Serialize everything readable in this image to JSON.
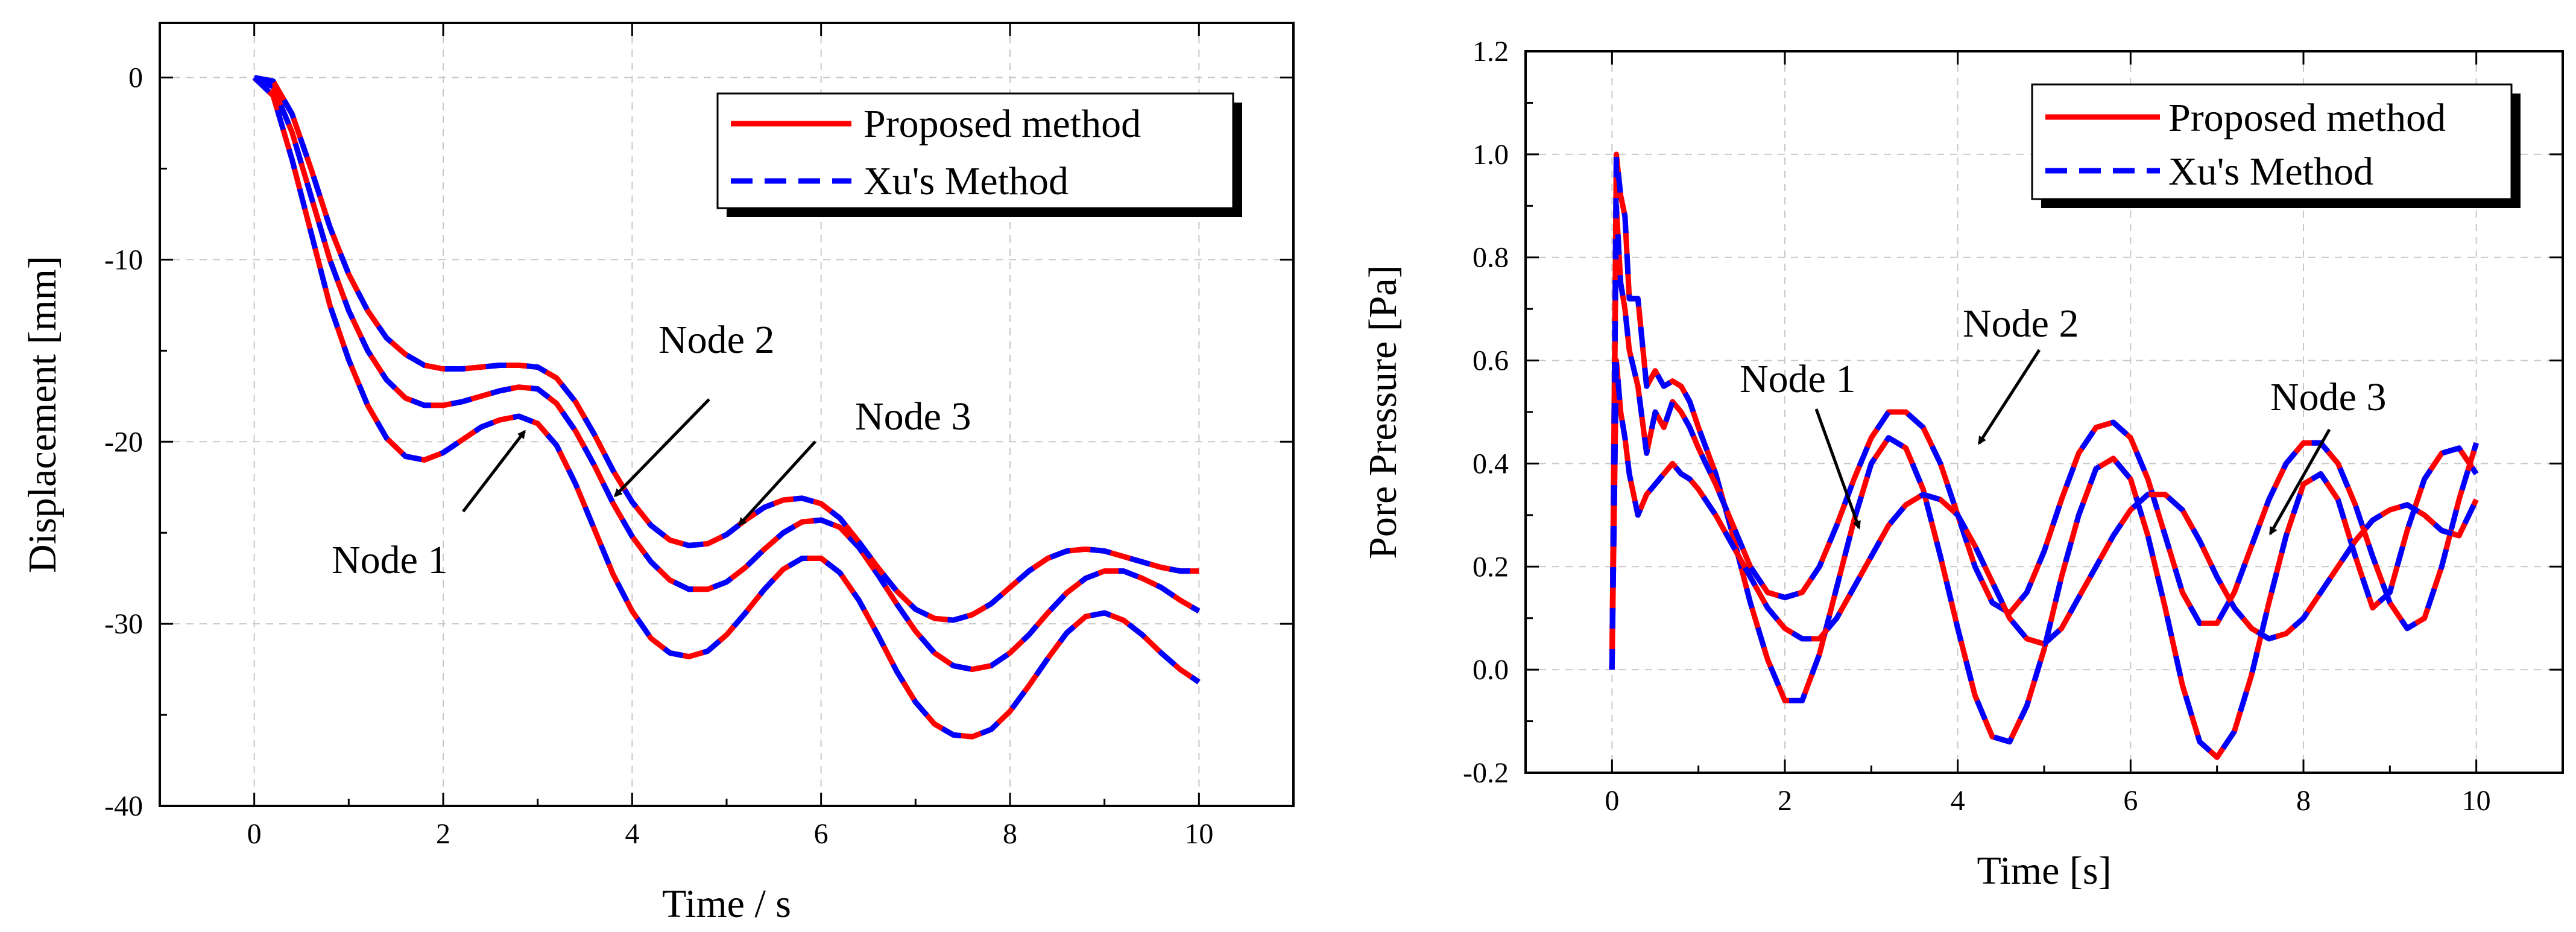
{
  "chart_data": [
    {
      "type": "line",
      "title": "",
      "xlabel": "Time / s",
      "ylabel": "Displacement [mm]",
      "xlim": [
        -1,
        11
      ],
      "ylim": [
        -40,
        3
      ],
      "xticks": [
        0,
        2,
        4,
        6,
        8,
        10
      ],
      "xtick_labels": [
        "0",
        "2",
        "4",
        "6",
        "8",
        "10"
      ],
      "yticks": [
        0,
        -10,
        -20,
        -30,
        -40
      ],
      "ytick_labels": [
        "0",
        "-10",
        "-20",
        "-30",
        "-40"
      ],
      "grid": true,
      "legend_position": "top-right",
      "legend": [
        {
          "label": "Proposed method",
          "color": "#ff0000",
          "style": "solid"
        },
        {
          "label": "Xu's Method",
          "color": "#0000ff",
          "style": "dashed"
        }
      ],
      "colors": {
        "proposed": "#ff0000",
        "xu": "#0000ff"
      },
      "series": [
        {
          "name": "Node 1",
          "x": [
            0,
            0.2,
            0.4,
            0.6,
            0.8,
            1.0,
            1.2,
            1.4,
            1.6,
            1.8,
            2.0,
            2.2,
            2.4,
            2.6,
            2.8,
            3.0,
            3.2,
            3.4,
            3.6,
            3.8,
            4.0,
            4.2,
            4.4,
            4.6,
            4.8,
            5.0,
            5.2,
            5.4,
            5.6,
            5.8,
            6.0,
            6.2,
            6.4,
            6.6,
            6.8,
            7.0,
            7.2,
            7.4,
            7.6,
            7.8,
            8.0,
            8.2,
            8.4,
            8.6,
            8.8,
            9.0,
            9.2,
            9.4,
            9.6,
            9.8,
            10.0
          ],
          "y": [
            0,
            -1,
            -4.5,
            -8.5,
            -12.5,
            -15.5,
            -18,
            -19.8,
            -20.8,
            -21,
            -20.6,
            -19.9,
            -19.2,
            -18.8,
            -18.6,
            -19,
            -20.2,
            -22.3,
            -24.8,
            -27.3,
            -29.3,
            -30.8,
            -31.6,
            -31.8,
            -31.5,
            -30.6,
            -29.4,
            -28.1,
            -27,
            -26.4,
            -26.4,
            -27.2,
            -28.7,
            -30.6,
            -32.6,
            -34.3,
            -35.5,
            -36.1,
            -36.2,
            -35.8,
            -34.8,
            -33.4,
            -31.9,
            -30.5,
            -29.6,
            -29.4,
            -29.8,
            -30.6,
            -31.6,
            -32.5,
            -33.2
          ]
        },
        {
          "name": "Node 2",
          "x": [
            0,
            0.2,
            0.4,
            0.6,
            0.8,
            1.0,
            1.2,
            1.4,
            1.6,
            1.8,
            2.0,
            2.2,
            2.4,
            2.6,
            2.8,
            3.0,
            3.2,
            3.4,
            3.6,
            3.8,
            4.0,
            4.2,
            4.4,
            4.6,
            4.8,
            5.0,
            5.2,
            5.4,
            5.6,
            5.8,
            6.0,
            6.2,
            6.4,
            6.6,
            6.8,
            7.0,
            7.2,
            7.4,
            7.6,
            7.8,
            8.0,
            8.2,
            8.4,
            8.6,
            8.8,
            9.0,
            9.2,
            9.4,
            9.6,
            9.8,
            10.0
          ],
          "y": [
            0,
            -0.5,
            -3,
            -6.5,
            -10,
            -12.8,
            -15,
            -16.6,
            -17.6,
            -18,
            -18,
            -17.8,
            -17.5,
            -17.2,
            -17,
            -17.1,
            -17.9,
            -19.4,
            -21.3,
            -23.4,
            -25.2,
            -26.6,
            -27.6,
            -28.1,
            -28.1,
            -27.7,
            -26.9,
            -25.9,
            -25,
            -24.4,
            -24.3,
            -24.7,
            -25.8,
            -27.3,
            -28.9,
            -30.4,
            -31.6,
            -32.3,
            -32.5,
            -32.3,
            -31.6,
            -30.6,
            -29.4,
            -28.3,
            -27.5,
            -27.1,
            -27.1,
            -27.5,
            -28,
            -28.7,
            -29.3
          ]
        },
        {
          "name": "Node 3",
          "x": [
            0,
            0.2,
            0.4,
            0.6,
            0.8,
            1.0,
            1.2,
            1.4,
            1.6,
            1.8,
            2.0,
            2.2,
            2.4,
            2.6,
            2.8,
            3.0,
            3.2,
            3.4,
            3.6,
            3.8,
            4.0,
            4.2,
            4.4,
            4.6,
            4.8,
            5.0,
            5.2,
            5.4,
            5.6,
            5.8,
            6.0,
            6.2,
            6.4,
            6.6,
            6.8,
            7.0,
            7.2,
            7.4,
            7.6,
            7.8,
            8.0,
            8.2,
            8.4,
            8.6,
            8.8,
            9.0,
            9.2,
            9.4,
            9.6,
            9.8,
            10.0
          ],
          "y": [
            0,
            -0.2,
            -2,
            -5,
            -8.2,
            -10.8,
            -12.8,
            -14.3,
            -15.2,
            -15.8,
            -16,
            -16,
            -15.9,
            -15.8,
            -15.8,
            -15.9,
            -16.5,
            -17.8,
            -19.6,
            -21.6,
            -23.3,
            -24.6,
            -25.4,
            -25.7,
            -25.6,
            -25.1,
            -24.3,
            -23.6,
            -23.2,
            -23.1,
            -23.4,
            -24.2,
            -25.5,
            -26.9,
            -28.2,
            -29.2,
            -29.7,
            -29.8,
            -29.5,
            -28.9,
            -28,
            -27.1,
            -26.4,
            -26,
            -25.9,
            -26,
            -26.3,
            -26.6,
            -26.9,
            -27.1,
            -27.1
          ]
        }
      ],
      "annotations": [
        {
          "text": "Node 1",
          "x": 2.2,
          "y": -26.5,
          "arrow_to": [
            2.9,
            -19.5
          ]
        },
        {
          "text": "Node 2",
          "x": 5.3,
          "y": -15,
          "arrow_to": [
            3.8,
            -23.2
          ]
        },
        {
          "text": "Node 3",
          "x": 7.3,
          "y": -19.5,
          "arrow_to": [
            5.1,
            -25.0
          ]
        }
      ]
    },
    {
      "type": "line",
      "title": "",
      "xlabel": "Time [s]",
      "ylabel": "Pore Pressure [Pa]",
      "xlim": [
        -1,
        11
      ],
      "ylim": [
        -0.2,
        1.2
      ],
      "xticks": [
        0,
        2,
        4,
        6,
        8,
        10
      ],
      "xtick_labels": [
        "0",
        "2",
        "4",
        "6",
        "8",
        "10"
      ],
      "yticks": [
        -0.2,
        0.0,
        0.2,
        0.4,
        0.6,
        0.8,
        1.0,
        1.2
      ],
      "ytick_labels": [
        "-0.2",
        "0.0",
        "0.2",
        "0.4",
        "0.6",
        "0.8",
        "1.0",
        "1.2"
      ],
      "grid": true,
      "legend_position": "top-right",
      "legend": [
        {
          "label": "Proposed method",
          "color": "#ff0000",
          "style": "solid"
        },
        {
          "label": "Xu's Method",
          "color": "#0000ff",
          "style": "dashed"
        }
      ],
      "colors": {
        "proposed": "#ff0000",
        "xu": "#0000ff"
      },
      "series": [
        {
          "name": "Node 1",
          "x": [
            0,
            0.05,
            0.1,
            0.15,
            0.2,
            0.3,
            0.4,
            0.5,
            0.6,
            0.7,
            0.8,
            0.9,
            1.0,
            1.2,
            1.4,
            1.6,
            1.8,
            2.0,
            2.2,
            2.4,
            2.6,
            2.8,
            3.0,
            3.2,
            3.4,
            3.6,
            3.8,
            4.0,
            4.2,
            4.4,
            4.6,
            4.8,
            5.0,
            5.2,
            5.4,
            5.6,
            5.8,
            6.0,
            6.2,
            6.4,
            6.6,
            6.8,
            7.0,
            7.2,
            7.4,
            7.6,
            7.8,
            8.0,
            8.2,
            8.4,
            8.6,
            8.8,
            9.0,
            9.2,
            9.4,
            9.6,
            9.8,
            10.0
          ],
          "y": [
            0,
            1.0,
            0.92,
            0.88,
            0.72,
            0.72,
            0.55,
            0.58,
            0.55,
            0.56,
            0.55,
            0.52,
            0.47,
            0.38,
            0.26,
            0.13,
            0.02,
            -0.06,
            -0.06,
            0.03,
            0.16,
            0.29,
            0.4,
            0.45,
            0.43,
            0.35,
            0.22,
            0.08,
            -0.05,
            -0.13,
            -0.14,
            -0.07,
            0.04,
            0.18,
            0.3,
            0.39,
            0.41,
            0.37,
            0.26,
            0.12,
            -0.03,
            -0.14,
            -0.17,
            -0.12,
            -0.01,
            0.13,
            0.26,
            0.36,
            0.38,
            0.33,
            0.22,
            0.12,
            0.15,
            0.27,
            0.37,
            0.42,
            0.43,
            0.38
          ]
        },
        {
          "name": "Node 2",
          "x": [
            0,
            0.05,
            0.1,
            0.15,
            0.2,
            0.3,
            0.4,
            0.5,
            0.6,
            0.7,
            0.8,
            0.9,
            1.0,
            1.2,
            1.4,
            1.6,
            1.8,
            2.0,
            2.2,
            2.4,
            2.6,
            2.8,
            3.0,
            3.2,
            3.4,
            3.6,
            3.8,
            4.0,
            4.2,
            4.4,
            4.6,
            4.8,
            5.0,
            5.2,
            5.4,
            5.6,
            5.8,
            6.0,
            6.2,
            6.4,
            6.6,
            6.8,
            7.0,
            7.2,
            7.4,
            7.6,
            7.8,
            8.0,
            8.2,
            8.4,
            8.6,
            8.8,
            9.0,
            9.2,
            9.4,
            9.6,
            9.8,
            10.0
          ],
          "y": [
            0,
            0.9,
            0.75,
            0.7,
            0.62,
            0.55,
            0.42,
            0.5,
            0.47,
            0.52,
            0.5,
            0.47,
            0.43,
            0.36,
            0.28,
            0.2,
            0.15,
            0.14,
            0.15,
            0.2,
            0.28,
            0.37,
            0.45,
            0.5,
            0.5,
            0.47,
            0.4,
            0.3,
            0.2,
            0.13,
            0.11,
            0.15,
            0.23,
            0.33,
            0.42,
            0.47,
            0.48,
            0.45,
            0.37,
            0.26,
            0.15,
            0.09,
            0.09,
            0.15,
            0.24,
            0.33,
            0.4,
            0.44,
            0.44,
            0.4,
            0.32,
            0.22,
            0.13,
            0.08,
            0.1,
            0.2,
            0.33,
            0.44
          ]
        },
        {
          "name": "Node 3",
          "x": [
            0,
            0.05,
            0.1,
            0.15,
            0.2,
            0.3,
            0.4,
            0.5,
            0.6,
            0.7,
            0.8,
            0.9,
            1.0,
            1.2,
            1.4,
            1.6,
            1.8,
            2.0,
            2.2,
            2.4,
            2.6,
            2.8,
            3.0,
            3.2,
            3.4,
            3.6,
            3.8,
            4.0,
            4.2,
            4.4,
            4.6,
            4.8,
            5.0,
            5.2,
            5.4,
            5.6,
            5.8,
            6.0,
            6.2,
            6.4,
            6.6,
            6.8,
            7.0,
            7.2,
            7.4,
            7.6,
            7.8,
            8.0,
            8.2,
            8.4,
            8.6,
            8.8,
            9.0,
            9.2,
            9.4,
            9.6,
            9.8,
            10.0
          ],
          "y": [
            0,
            0.6,
            0.5,
            0.45,
            0.38,
            0.3,
            0.34,
            0.36,
            0.38,
            0.4,
            0.38,
            0.37,
            0.35,
            0.3,
            0.24,
            0.18,
            0.12,
            0.08,
            0.06,
            0.06,
            0.1,
            0.16,
            0.22,
            0.28,
            0.32,
            0.34,
            0.33,
            0.3,
            0.24,
            0.17,
            0.1,
            0.06,
            0.05,
            0.08,
            0.14,
            0.2,
            0.26,
            0.31,
            0.34,
            0.34,
            0.31,
            0.25,
            0.18,
            0.12,
            0.08,
            0.06,
            0.07,
            0.1,
            0.15,
            0.2,
            0.25,
            0.29,
            0.31,
            0.32,
            0.3,
            0.27,
            0.26,
            0.33
          ]
        }
      ],
      "annotations": [
        {
          "text": "Node 1",
          "x": 2.25,
          "y": 0.54,
          "arrow_to": [
            3.05,
            0.27
          ]
        },
        {
          "text": "Node 2",
          "x": 4.55,
          "y": 0.65,
          "arrow_to": [
            4.3,
            0.43
          ]
        },
        {
          "text": "Node 3",
          "x": 8.5,
          "y": 0.5,
          "arrow_to": [
            7.75,
            0.26
          ]
        }
      ]
    }
  ]
}
